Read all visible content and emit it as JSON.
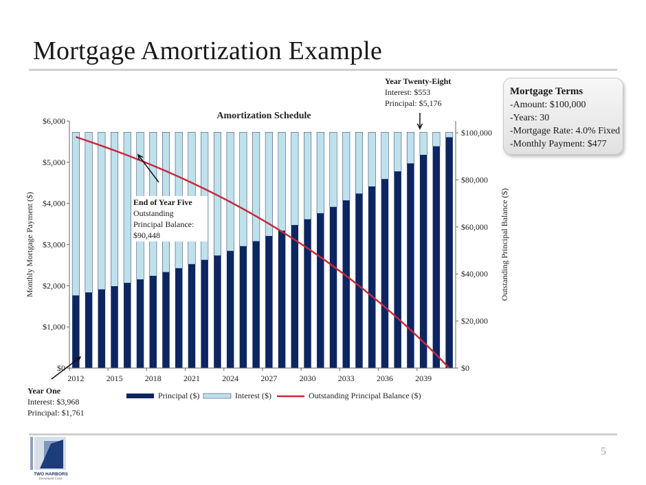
{
  "slide": {
    "title": "Mortgage Amortization Example",
    "page_number": "5"
  },
  "terms": {
    "title": "Mortgage Terms",
    "lines": [
      "-Amount: $100,000",
      "-Years: 30",
      "-Mortgage Rate: 4.0% Fixed",
      "-Monthly Payment: $477"
    ]
  },
  "annotations": {
    "year_one": {
      "title": "Year One",
      "lines": [
        "Interest: $3,968",
        "Principal: $1,761"
      ]
    },
    "year_five": {
      "title": "End of Year Five",
      "lines": [
        "Outstanding",
        "Principal Balance:",
        "$90,448"
      ]
    },
    "year_28": {
      "title": "Year Twenty-Eight",
      "lines": [
        "Interest: $553",
        "Principal: $5,176"
      ]
    }
  },
  "logo": {
    "name": "TWO HARBORS",
    "sub": "Investment Corp."
  },
  "colors": {
    "principal": "#0d2561",
    "interest": "#bfe1ec",
    "interest_border": "#1c2f5e",
    "balance": "#c8293a"
  },
  "chart_data": {
    "type": "bar",
    "title": "Amortization Schedule",
    "ylabel": "Monthly Mortgage Payment ($)",
    "y2label": "Outstanding Principal Balance ($)",
    "ylim": [
      0,
      6000
    ],
    "y2lim": [
      0,
      105000
    ],
    "yticks": [
      "$0",
      "$1,000",
      "$2,000",
      "$3,000",
      "$4,000",
      "$5,000",
      "$6,000"
    ],
    "y2ticks": [
      "$0",
      "$20,000",
      "$40,000",
      "$60,000",
      "$80,000",
      "$100,000"
    ],
    "x_tick_labels": [
      "2012",
      "2015",
      "2018",
      "2021",
      "2024",
      "2027",
      "2030",
      "2033",
      "2036",
      "2039"
    ],
    "categories": [
      2012,
      2013,
      2014,
      2015,
      2016,
      2017,
      2018,
      2019,
      2020,
      2021,
      2022,
      2023,
      2024,
      2025,
      2026,
      2027,
      2028,
      2029,
      2030,
      2031,
      2032,
      2033,
      2034,
      2035,
      2036,
      2037,
      2038,
      2039,
      2040,
      2041
    ],
    "legend": [
      "Principal ($)",
      "Interest ($)",
      "Outstanding Principal Balance ($)"
    ],
    "legend_position": "bottom",
    "series": [
      {
        "name": "Principal ($)",
        "type": "bar",
        "values": [
          1761,
          1833,
          1907,
          1985,
          2066,
          2150,
          2237,
          2328,
          2423,
          2522,
          2624,
          2731,
          2842,
          2958,
          3078,
          3204,
          3334,
          3470,
          3611,
          3758,
          3911,
          4070,
          4236,
          4408,
          4588,
          4774,
          4969,
          5176,
          5383,
          5602
        ]
      },
      {
        "name": "Interest ($)",
        "type": "bar",
        "values": [
          3968,
          3896,
          3822,
          3744,
          3663,
          3579,
          3492,
          3401,
          3306,
          3207,
          3105,
          2998,
          2887,
          2771,
          2651,
          2525,
          2395,
          2259,
          2118,
          1971,
          1818,
          1659,
          1493,
          1321,
          1141,
          955,
          760,
          553,
          346,
          127
        ]
      },
      {
        "name": "Outstanding Principal Balance ($)",
        "type": "line",
        "values": [
          98239,
          96406,
          94499,
          92514,
          90448,
          88298,
          86061,
          83733,
          81310,
          78788,
          76164,
          73433,
          70591,
          67633,
          64555,
          61351,
          58017,
          54547,
          50936,
          47178,
          43267,
          39197,
          34961,
          30553,
          25965,
          21191,
          16222,
          11046,
          5663,
          0
        ]
      }
    ]
  }
}
